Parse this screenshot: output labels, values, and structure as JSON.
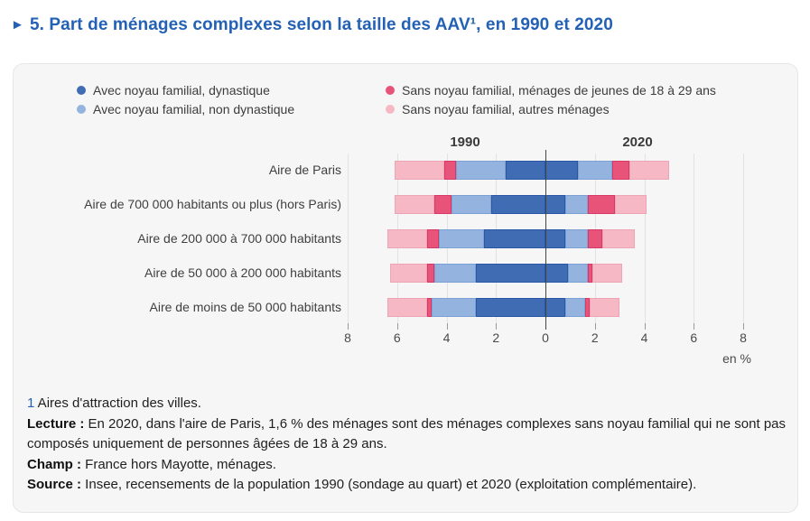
{
  "title": {
    "arrow": "►",
    "text": "5. Part de ménages complexes selon la taille des AAV¹, en 1990 et 2020"
  },
  "chart_data": {
    "type": "bar",
    "variant": "diverging-horizontal-stacked",
    "title": "5. Part de ménages complexes selon la taille des AAV¹, en 1990 et 2020",
    "unit_label": "en %",
    "side_labels": [
      "1990",
      "2020"
    ],
    "axis_tick_labels": [
      "8",
      "6",
      "4",
      "2",
      "0",
      "2",
      "4",
      "6",
      "8"
    ],
    "axis_tick_values": [
      -8,
      -6,
      -4,
      -2,
      0,
      2,
      4,
      6,
      8
    ],
    "xlim": [
      -8,
      8
    ],
    "grid": true,
    "categories": [
      "Aire de Paris",
      "Aire de 700 000 habitants ou plus (hors Paris)",
      "Aire de 200 000 à 700 000 habitants",
      "Aire de 50 000 à 200 000 habitants",
      "Aire de moins de 50 000 habitants"
    ],
    "series": [
      {
        "name": "Avec noyau familial, dynastique",
        "color": "#3f6cb3",
        "border": "#2a57a5",
        "values_1990": [
          1.6,
          2.2,
          2.5,
          2.8,
          2.8
        ],
        "values_2020": [
          1.3,
          0.8,
          0.8,
          0.9,
          0.8
        ]
      },
      {
        "name": "Avec noyau familial, non dynastique",
        "color": "#94b3de",
        "border": "#7ba0d4",
        "values_1990": [
          2.0,
          1.6,
          1.8,
          1.7,
          1.8
        ],
        "values_2020": [
          1.4,
          0.9,
          0.9,
          0.8,
          0.8
        ]
      },
      {
        "name": "Sans noyau familial, ménages de jeunes de 18 à 29 ans",
        "color": "#e8537a",
        "border": "#d63868",
        "values_1990": [
          0.5,
          0.7,
          0.5,
          0.3,
          0.2
        ],
        "values_2020": [
          0.7,
          1.1,
          0.6,
          0.2,
          0.2
        ]
      },
      {
        "name": "Sans noyau familial, autres ménages",
        "color": "#f6b8c4",
        "border": "#eda4b4",
        "values_1990": [
          2.0,
          1.6,
          1.6,
          1.5,
          1.6
        ],
        "values_2020": [
          1.6,
          1.3,
          1.3,
          1.2,
          1.2
        ]
      }
    ]
  },
  "notes": [
    {
      "prefix": "1",
      "text": " Aires d'attraction des villes."
    },
    {
      "prefix": "Lecture :",
      "text": " En 2020, dans l'aire de Paris, 1,6 % des ménages sont des ménages complexes sans noyau familial qui ne sont pas composés uniquement de personnes âgées de 18 à 29 ans."
    },
    {
      "prefix": "Champ :",
      "text": " France hors Mayotte, ménages."
    },
    {
      "prefix": "Source :",
      "text": " Insee, recensements de la population 1990 (sondage au quart) et 2020 (exploitation complémentaire)."
    }
  ],
  "colors": {
    "accent_blue": "#2361b5",
    "card_background": "#f6f6f6",
    "zero_line": "#44443c",
    "gridline": "#e2e2e2"
  }
}
